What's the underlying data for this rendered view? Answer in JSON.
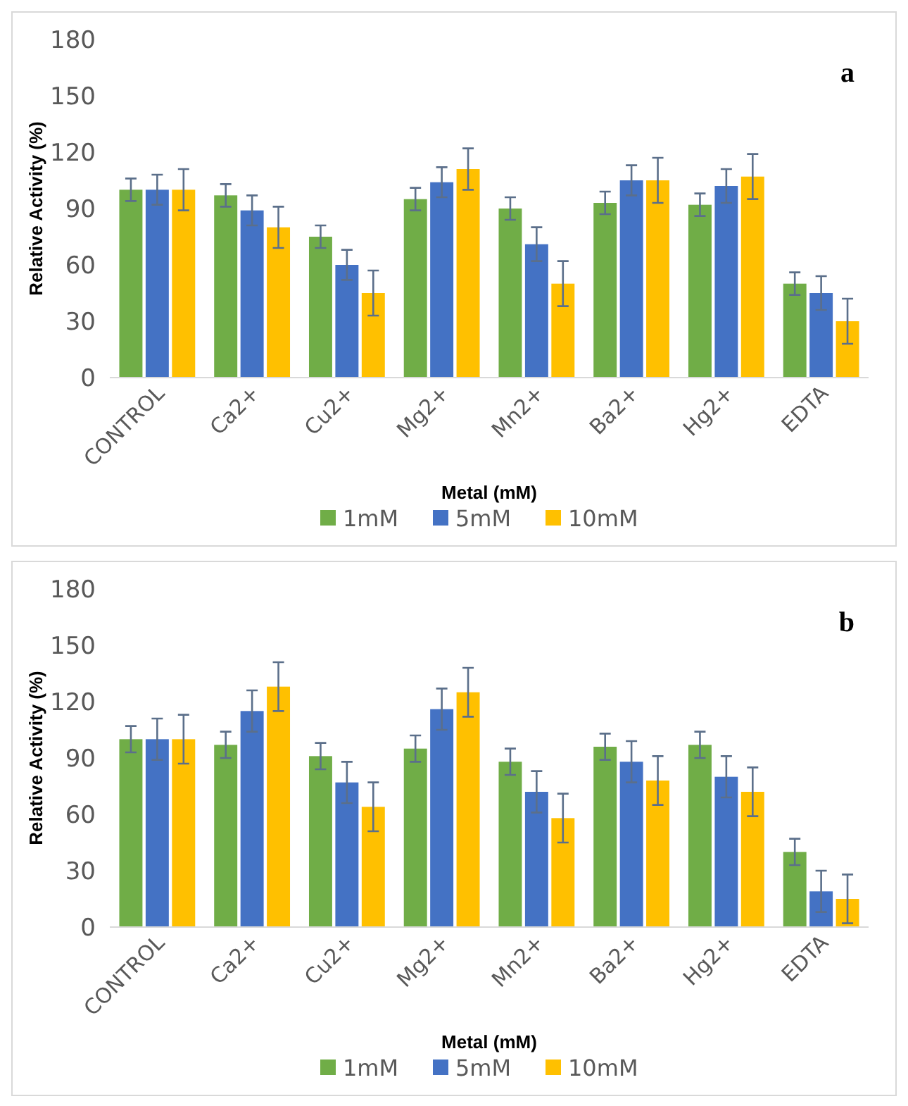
{
  "chart_data": [
    {
      "type": "bar",
      "xlabel": "Metal (mM)",
      "ylabel": "Relative Activity (%)",
      "annotations": [
        "a"
      ],
      "categories": [
        "CONTROL",
        "Ca2+",
        "Cu2+",
        "Mg2+",
        "Mn2+",
        "Ba2+",
        "Hg2+",
        "EDTA"
      ],
      "ylim": [
        0,
        180
      ],
      "yticks": [
        0,
        30,
        60,
        90,
        120,
        150,
        180
      ],
      "legend": "bottom",
      "grid": false,
      "series": [
        {
          "name": "1mM",
          "color": "#70ad47",
          "values": [
            100,
            97,
            75,
            95,
            90,
            93,
            92,
            50
          ],
          "errors": [
            6,
            6,
            6,
            6,
            6,
            6,
            6,
            6
          ]
        },
        {
          "name": "5mM",
          "color": "#4472c4",
          "values": [
            100,
            89,
            60,
            104,
            71,
            105,
            102,
            45
          ],
          "errors": [
            8,
            8,
            8,
            8,
            9,
            8,
            9,
            9
          ]
        },
        {
          "name": "10mM",
          "color": "#ffc000",
          "values": [
            100,
            80,
            45,
            111,
            50,
            105,
            107,
            30
          ],
          "errors": [
            11,
            11,
            12,
            11,
            12,
            12,
            12,
            12
          ]
        }
      ]
    },
    {
      "type": "bar",
      "xlabel": "Metal (mM)",
      "ylabel": "Relative Activity (%)",
      "annotations": [
        "b"
      ],
      "categories": [
        "CONTROL",
        "Ca2+",
        "Cu2+",
        "Mg2+",
        "Mn2+",
        "Ba2+",
        "Hg2+",
        "EDTA"
      ],
      "ylim": [
        0,
        180
      ],
      "yticks": [
        0,
        30,
        60,
        90,
        120,
        150,
        180
      ],
      "legend": "bottom",
      "grid": false,
      "series": [
        {
          "name": "1mM",
          "color": "#70ad47",
          "values": [
            100,
            97,
            91,
            95,
            88,
            96,
            97,
            40
          ],
          "errors": [
            7,
            7,
            7,
            7,
            7,
            7,
            7,
            7
          ]
        },
        {
          "name": "5mM",
          "color": "#4472c4",
          "values": [
            100,
            115,
            77,
            116,
            72,
            88,
            80,
            19
          ],
          "errors": [
            11,
            11,
            11,
            11,
            11,
            11,
            11,
            11
          ]
        },
        {
          "name": "10mM",
          "color": "#ffc000",
          "values": [
            100,
            128,
            64,
            125,
            58,
            78,
            72,
            15
          ],
          "errors": [
            13,
            13,
            13,
            13,
            13,
            13,
            13,
            13
          ]
        }
      ]
    }
  ]
}
